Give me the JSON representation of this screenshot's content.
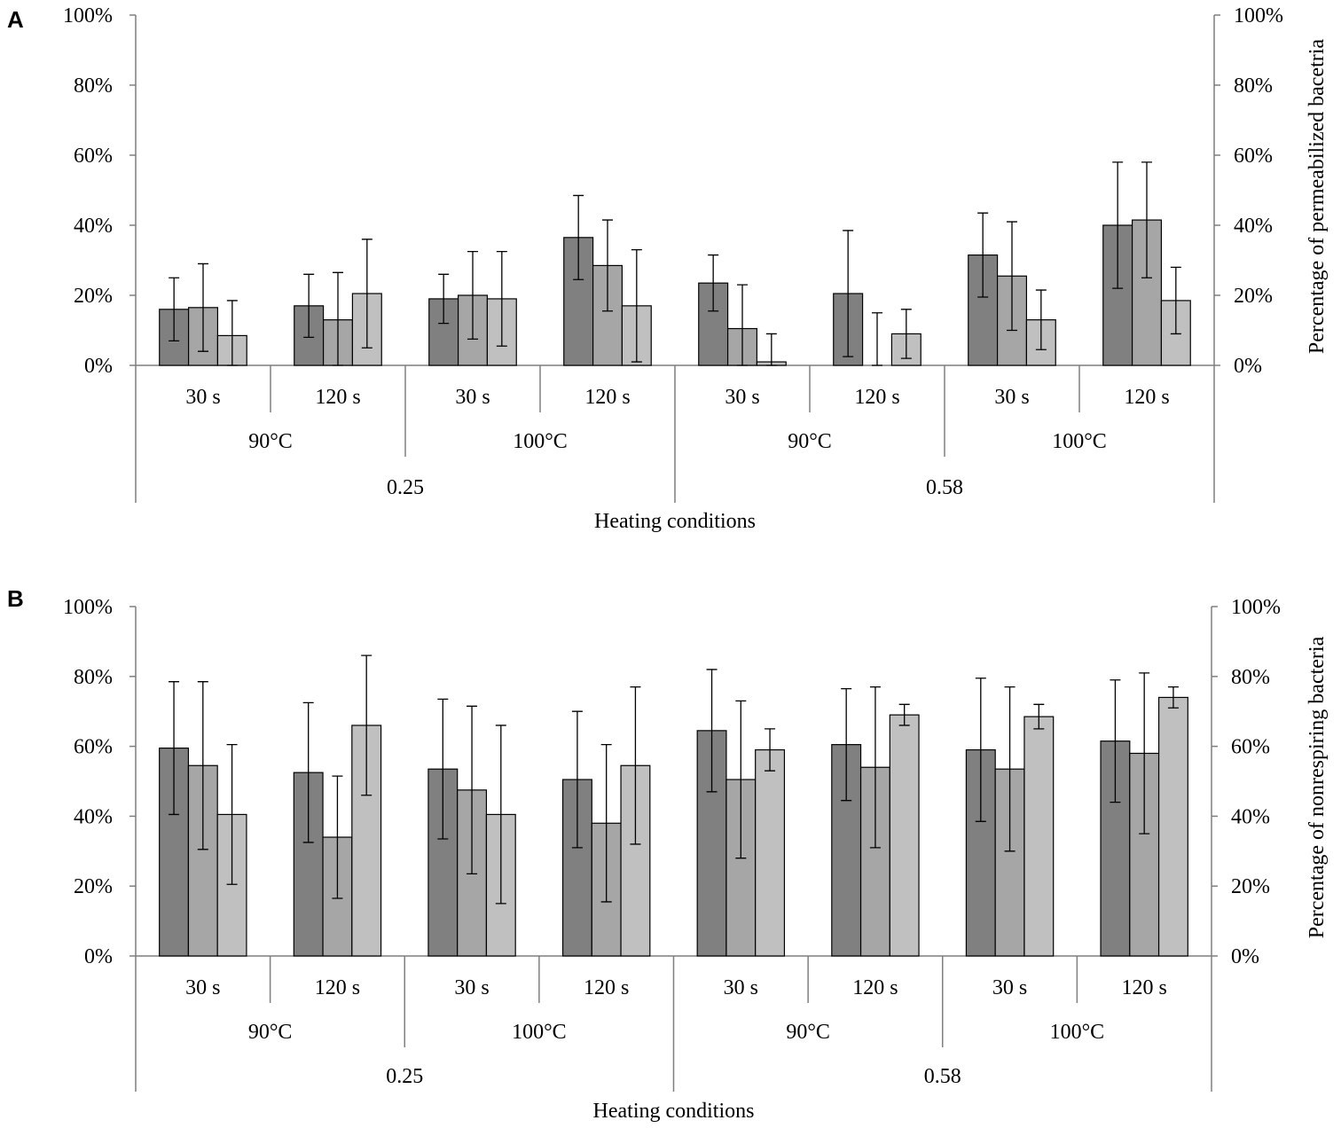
{
  "colors": {
    "series1": "#808080",
    "series2": "#a6a6a6",
    "series3": "#c0c0c0",
    "axis": "#7f7f7f"
  },
  "chart_data": [
    {
      "type": "bar",
      "panel": "A",
      "right_ylabel": "Percentage of permeabilized bacetria",
      "xlabel": "Heating conditions",
      "ylim": [
        0,
        100
      ],
      "y_ticks": [
        "0%",
        "20%",
        "40%",
        "60%",
        "80%",
        "100%"
      ],
      "y_tick_values": [
        0,
        20,
        40,
        60,
        80,
        100
      ],
      "categories": [
        "30 s",
        "120 s",
        "30 s",
        "120 s",
        "30 s",
        "120 s",
        "30 s",
        "120 s"
      ],
      "temperature_groups": [
        "90°C",
        "100°C",
        "90°C",
        "100°C"
      ],
      "aw_groups": [
        "0.25",
        "0.58"
      ],
      "series": [
        {
          "name": "series 1",
          "values": [
            16,
            17,
            19,
            36.5,
            23.5,
            20.5,
            31.5,
            40
          ],
          "errors": [
            9,
            9,
            7,
            12,
            8,
            18,
            12,
            18
          ]
        },
        {
          "name": "series 2",
          "values": [
            16.5,
            13,
            20,
            28.5,
            10.5,
            0,
            25.5,
            41.5
          ],
          "errors": [
            12.5,
            13.5,
            12.5,
            13,
            12.5,
            15,
            15.5,
            16.5
          ]
        },
        {
          "name": "series 3",
          "values": [
            8.5,
            20.5,
            19,
            17,
            1,
            9,
            13,
            18.5
          ],
          "errors": [
            10,
            15.5,
            13.5,
            16,
            8,
            7,
            8.5,
            9.5
          ]
        }
      ]
    },
    {
      "type": "bar",
      "panel": "B",
      "right_ylabel": "Percentage of nonrespiring bacteria",
      "xlabel": "Heating conditions",
      "ylim": [
        0,
        100
      ],
      "y_ticks": [
        "0%",
        "20%",
        "40%",
        "60%",
        "80%",
        "100%"
      ],
      "y_tick_values": [
        0,
        20,
        40,
        60,
        80,
        100
      ],
      "categories": [
        "30 s",
        "120 s",
        "30 s",
        "120 s",
        "30 s",
        "120 s",
        "30 s",
        "120 s"
      ],
      "temperature_groups": [
        "90°C",
        "100°C",
        "90°C",
        "100°C"
      ],
      "aw_groups": [
        "0.25",
        "0.58"
      ],
      "series": [
        {
          "name": "series 1",
          "values": [
            59.5,
            52.5,
            53.5,
            50.5,
            64.5,
            60.5,
            59,
            61.5
          ],
          "errors": [
            19,
            20,
            20,
            19.5,
            17.5,
            16,
            20.5,
            17.5
          ]
        },
        {
          "name": "series 2",
          "values": [
            54.5,
            34,
            47.5,
            38,
            50.5,
            54,
            53.5,
            58
          ],
          "errors": [
            24,
            17.5,
            24,
            22.5,
            22.5,
            23,
            23.5,
            23
          ]
        },
        {
          "name": "series 3",
          "values": [
            40.5,
            66,
            40.5,
            54.5,
            59,
            69,
            68.5,
            74
          ],
          "errors": [
            20,
            20,
            25.5,
            22.5,
            6,
            3,
            3.5,
            3
          ]
        }
      ]
    }
  ]
}
